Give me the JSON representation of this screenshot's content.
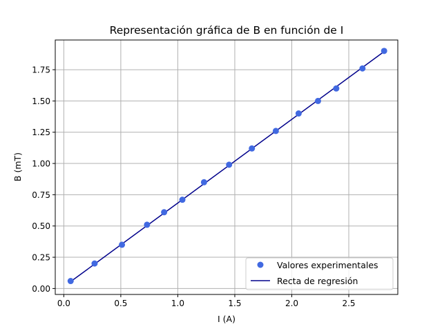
{
  "chart_data": {
    "type": "scatter",
    "title": "Representación gráfica de B en función de I",
    "xlabel": "I (A)",
    "ylabel": "B (mT)",
    "xlim": [
      -0.075,
      2.93
    ],
    "ylim": [
      -0.0475,
      1.9875
    ],
    "xticks": [
      0.0,
      0.5,
      1.0,
      1.5,
      2.0,
      2.5
    ],
    "xtick_labels": [
      "0.0",
      "0.5",
      "1.0",
      "1.5",
      "2.0",
      "2.5"
    ],
    "yticks": [
      0.0,
      0.25,
      0.5,
      0.75,
      1.0,
      1.25,
      1.5,
      1.75
    ],
    "ytick_labels": [
      "0.00",
      "0.25",
      "0.50",
      "0.75",
      "1.00",
      "1.25",
      "1.50",
      "1.75"
    ],
    "grid": true,
    "legend": {
      "placement": "lower-right",
      "entries": [
        "Valores experimentales",
        "Recta de regresión"
      ]
    },
    "series": [
      {
        "name": "Valores experimentales",
        "kind": "scatter",
        "color": "#4169e1",
        "x": [
          0.06,
          0.27,
          0.51,
          0.73,
          0.88,
          1.04,
          1.23,
          1.45,
          1.65,
          1.86,
          2.06,
          2.23,
          2.39,
          2.62,
          2.81
        ],
        "y": [
          0.06,
          0.2,
          0.35,
          0.51,
          0.61,
          0.71,
          0.85,
          0.99,
          1.12,
          1.26,
          1.4,
          1.5,
          1.6,
          1.76,
          1.9
        ]
      },
      {
        "name": "Recta de regresión",
        "kind": "line",
        "color": "#00008b",
        "x": [
          0.06,
          2.81
        ],
        "y": [
          0.055,
          1.895
        ]
      }
    ]
  }
}
